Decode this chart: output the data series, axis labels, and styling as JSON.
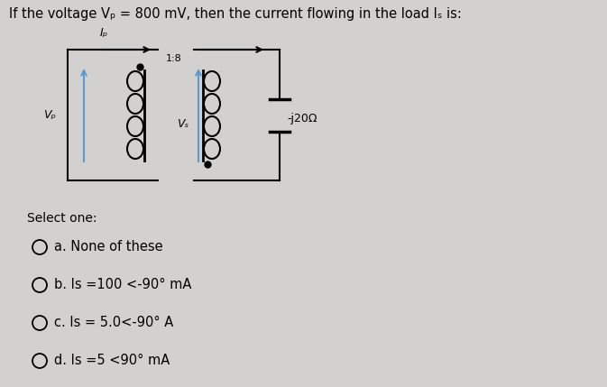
{
  "title": "If the voltage Vₚ = 800 mV, then the current flowing in the load Iₛ is:",
  "background_color": "#d3d0d0",
  "text_color": "#000000",
  "select_one": "Select one:",
  "options": [
    "a. None of these",
    "b. Is =100 <-90° mA",
    "c. Is = 5.0<-90° A",
    "d. Is =5 <90° mA"
  ],
  "circuit_label_Vp": "Vₚ",
  "circuit_label_Vs": "Vₛ",
  "circuit_label_Ip": "Iₚ",
  "circuit_label_impedance": "-j20Ω",
  "circuit_label_ratio": "1:8",
  "blue_color": "#5b9bd5",
  "lw": 1.5
}
